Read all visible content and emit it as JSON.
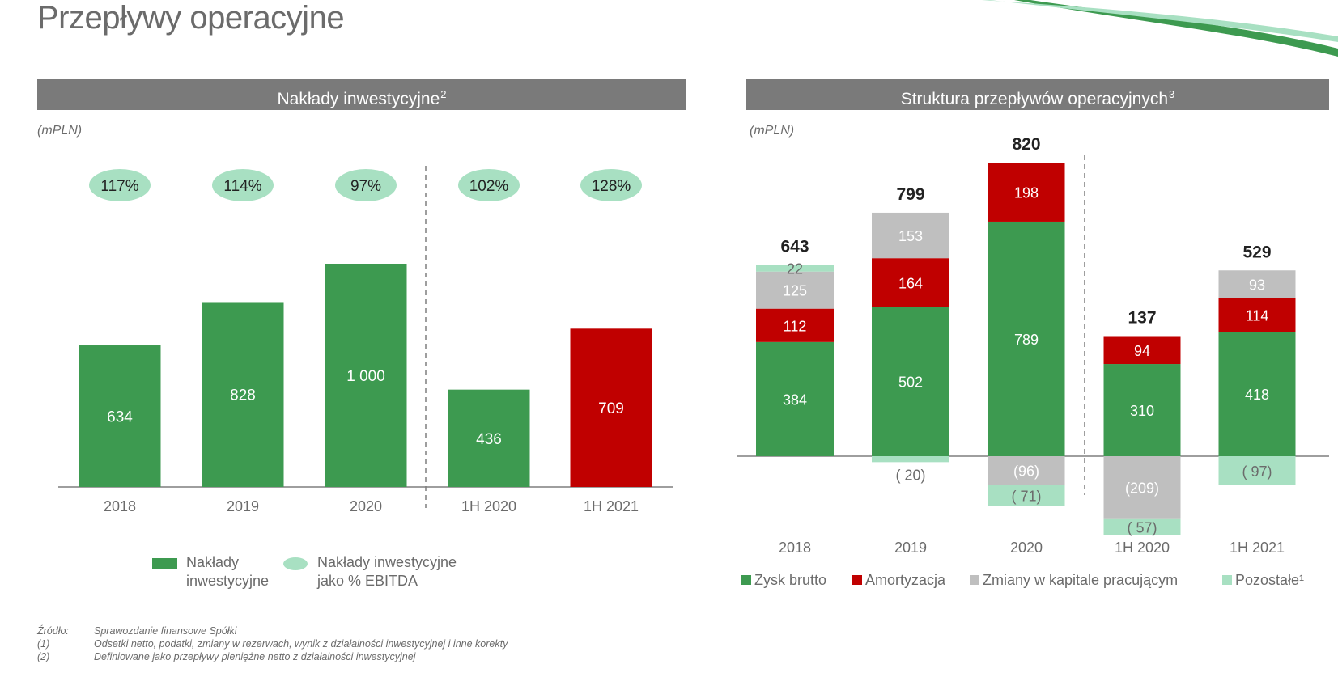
{
  "page_title": "Przepływy operacyjne",
  "colors": {
    "green": "#3d9a50",
    "red": "#c00000",
    "grey": "#bfbfbf",
    "mint": "#a8e0c2",
    "header": "#7a7a7a"
  },
  "left": {
    "header": "Nakłady inwestycyjne",
    "header_sup": "2",
    "unit": "(mPLN)",
    "legend": [
      {
        "line1": "Nakłady",
        "line2": "inwestycyjne"
      },
      {
        "line1": "Nakłady inwestycyjne",
        "line2": "jako % EBITDA"
      }
    ]
  },
  "right": {
    "header": "Struktura przepływów operacyjnych",
    "header_sup": "3",
    "unit": "(mPLN)",
    "legend": [
      "Zysk brutto",
      "Amortyzacja",
      "Zmiany w kapitale pracującym",
      "Pozostałe¹"
    ]
  },
  "chart_data": [
    {
      "type": "bar",
      "categories": [
        "2018",
        "2019",
        "2020",
        "1H 2020",
        "1H 2021"
      ],
      "values": [
        634,
        828,
        1000,
        436,
        709
      ],
      "value_labels": [
        "634",
        "828",
        "1 000",
        "436",
        "709"
      ],
      "highlight_index": 4,
      "series": [
        {
          "name": "Nakłady inwestycyjne",
          "values": [
            634,
            828,
            1000,
            436,
            709
          ]
        },
        {
          "name": "Nakłady inwestycyjne jako % EBITDA",
          "values": [
            117,
            114,
            97,
            102,
            128
          ]
        }
      ],
      "pct_labels": [
        "117%",
        "114%",
        "97%",
        "102%",
        "128%"
      ],
      "ylim": [
        0,
        1000
      ],
      "legend_position": "bottom"
    },
    {
      "type": "bar",
      "stacked": true,
      "categories": [
        "2018",
        "2019",
        "2020",
        "1H 2020",
        "1H 2021"
      ],
      "series": [
        {
          "name": "Zysk brutto",
          "values": [
            384,
            502,
            789,
            310,
            418
          ],
          "labels": [
            "384",
            "502",
            "789",
            "310",
            "418"
          ]
        },
        {
          "name": "Amortyzacja",
          "values": [
            112,
            164,
            198,
            94,
            114
          ],
          "labels": [
            "112",
            "164",
            "198",
            "94",
            "114"
          ]
        },
        {
          "name": "Zmiany w kapitale pracującym",
          "values": [
            125,
            153,
            -96,
            -209,
            93
          ],
          "labels": [
            "125",
            "153",
            "(96)",
            "(209)",
            "93"
          ]
        },
        {
          "name": "Pozostałe¹",
          "values": [
            22,
            -20,
            -71,
            -57,
            -97
          ],
          "labels": [
            "22",
            "( 20)",
            "( 71)",
            "( 57)",
            "( 97)"
          ]
        }
      ],
      "totals": [
        "643",
        "799",
        "820",
        "137",
        "529"
      ],
      "legend_position": "bottom"
    }
  ],
  "footnotes": [
    {
      "key": "Źródło:",
      "text": "Sprawozdanie finansowe Spółki"
    },
    {
      "key": "(1)",
      "text": "Odsetki netto, podatki, zmiany w rezerwach, wynik z działalności inwestycyjnej i inne korekty"
    },
    {
      "key": "(2)",
      "text": "Definiowane jako przepływy pieniężne netto z działalności inwestycyjnej"
    }
  ]
}
